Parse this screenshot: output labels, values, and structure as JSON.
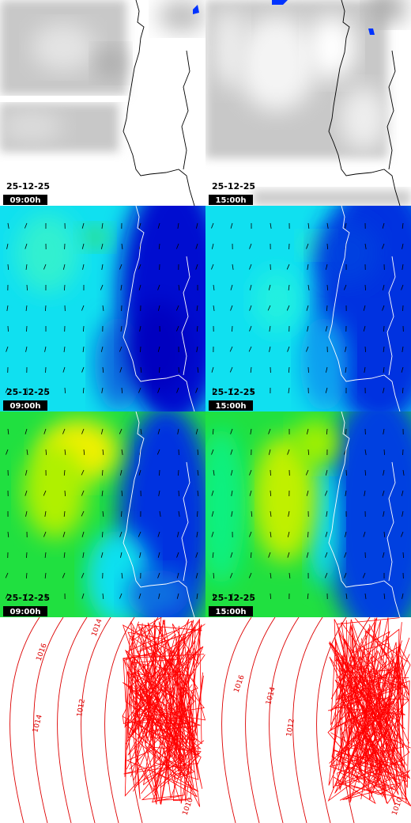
{
  "cloud_panels": [
    {
      "date": "25-12-25",
      "time": "09:00h"
    },
    {
      "date": "25-12-25",
      "time": "15:00h"
    }
  ],
  "wind_panels": [
    {
      "date": "25-12-25",
      "time": "09:00h"
    },
    {
      "date": "25-12-25",
      "time": "15:00h"
    }
  ],
  "gust_panels": [
    {
      "date": "25-12-25",
      "time": "09:00h"
    },
    {
      "date": "25-12-25",
      "time": "15:00h"
    }
  ],
  "pressure_panels": [
    {
      "labels": [
        "1014",
        "1016",
        "1014",
        "1012",
        "1010"
      ]
    },
    {
      "labels": [
        "1016",
        "1014",
        "1012",
        "1010"
      ]
    }
  ]
}
